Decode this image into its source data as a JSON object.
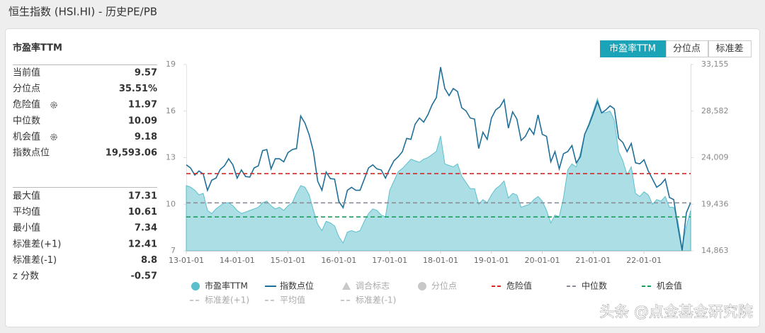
{
  "header": {
    "title": "恒生指数 (HSI.HI) - 历史PE/PB"
  },
  "panel": {
    "title": "市盈率TTM",
    "tabs": [
      "市盈率TTM",
      "分位点",
      "标准差"
    ],
    "active_tab": 0,
    "stats_top": [
      {
        "label": "当前值",
        "value": "9.57"
      },
      {
        "label": "分位点",
        "value": "35.51%"
      },
      {
        "label": "危险值",
        "value": "11.97",
        "settings_icon": true
      },
      {
        "label": "中位数",
        "value": "10.09"
      },
      {
        "label": "机会值",
        "value": "9.18",
        "settings_icon": true
      },
      {
        "label": "指数点位",
        "value": "19,593.06"
      }
    ],
    "stats_bottom": [
      {
        "label": "最大值",
        "value": "17.31"
      },
      {
        "label": "平均值",
        "value": "10.61"
      },
      {
        "label": "最小值",
        "value": "7.34"
      },
      {
        "label": "标准差(+1)",
        "value": "12.41"
      },
      {
        "label": "标准差(-1)",
        "value": "8.8"
      },
      {
        "label": "z 分数",
        "value": "-0.57"
      }
    ]
  },
  "watermark": "头条 @点金基金研究院",
  "chart_data": {
    "type": "line",
    "categories": [
      "13-01-01",
      null,
      null,
      null,
      null,
      null,
      null,
      null,
      null,
      null,
      null,
      null,
      "14-01-01",
      null,
      null,
      null,
      null,
      null,
      null,
      null,
      null,
      null,
      null,
      null,
      "15-01-01",
      null,
      null,
      null,
      null,
      null,
      null,
      null,
      null,
      null,
      null,
      null,
      "16-01-01",
      null,
      null,
      null,
      null,
      null,
      null,
      null,
      null,
      null,
      null,
      null,
      "17-01-01",
      null,
      null,
      null,
      null,
      null,
      null,
      null,
      null,
      null,
      null,
      null,
      "18-01-01",
      null,
      null,
      null,
      null,
      null,
      null,
      null,
      null,
      null,
      null,
      null,
      "19-01-01",
      null,
      null,
      null,
      null,
      null,
      null,
      null,
      null,
      null,
      null,
      null,
      "20-01-01",
      null,
      null,
      null,
      null,
      null,
      null,
      null,
      null,
      null,
      null,
      null,
      "21-01-01",
      null,
      null,
      null,
      null,
      null,
      null,
      null,
      null,
      null,
      null,
      null,
      "22-01-01",
      null,
      null,
      null,
      null,
      null,
      null,
      null,
      null,
      null,
      null,
      null
    ],
    "series": [
      {
        "name": "市盈率TTM",
        "style": "area",
        "symbol": "circle",
        "color": "#5bbfcc",
        "fill": "#a3dbe2",
        "values": [
          11.2,
          11.1,
          10.9,
          10.6,
          10.7,
          9.6,
          9.4,
          9.7,
          9.9,
          10.1,
          10.1,
          9.9,
          9.6,
          9.4,
          9.5,
          9.6,
          9.7,
          9.8,
          10.1,
          10.2,
          9.9,
          9.7,
          9.8,
          9.6,
          9.9,
          10.1,
          10.7,
          11.2,
          11.1,
          10.6,
          9.6,
          8.7,
          8.3,
          8.9,
          8.8,
          8.6,
          7.9,
          7.5,
          8.2,
          8.3,
          8.2,
          8.3,
          8.9,
          9.4,
          9.7,
          9.6,
          9.3,
          9.2,
          10.9,
          11.5,
          12.1,
          12.3,
          12.6,
          12.9,
          12.8,
          12.7,
          12.9,
          13.0,
          13.2,
          13.4,
          14.4,
          12.6,
          12.5,
          12.4,
          12.6,
          11.8,
          11.4,
          11.0,
          11.0,
          10.0,
          10.3,
          10.1,
          10.6,
          11.0,
          11.2,
          11.5,
          10.4,
          10.7,
          10.6,
          9.8,
          9.9,
          10.0,
          10.3,
          10.5,
          10.2,
          9.6,
          8.8,
          9.3,
          9.2,
          10.4,
          12.2,
          12.6,
          12.4,
          13.3,
          14.5,
          15.2,
          16.0,
          16.8,
          15.9,
          15.9,
          16.0,
          15.4,
          13.4,
          12.8,
          11.9,
          12.4,
          10.7,
          10.5,
          10.8,
          10.6,
          10.0,
          10.3,
          10.2,
          10.5,
          9.8,
          9.8,
          8.9,
          7.2,
          8.6,
          9.6
        ]
      },
      {
        "name": "指数点位",
        "style": "line",
        "symbol": "line",
        "color": "#1f6f98",
        "axis": "y2",
        "values": [
          23300,
          23000,
          22300,
          22700,
          22400,
          20800,
          21800,
          22000,
          22850,
          23200,
          23900,
          23300,
          22000,
          22800,
          22150,
          22100,
          23000,
          23200,
          24700,
          24800,
          22900,
          23900,
          23900,
          23600,
          24500,
          24800,
          24900,
          28100,
          27400,
          26250,
          24600,
          21700,
          20800,
          22600,
          21950,
          21900,
          19700,
          19100,
          20800,
          21100,
          20800,
          20800,
          21900,
          23000,
          23300,
          22900,
          22800,
          22000,
          22900,
          23700,
          24100,
          24600,
          25900,
          25800,
          27300,
          27900,
          27500,
          28200,
          29200,
          29900,
          32900,
          30800,
          30100,
          30800,
          30500,
          28900,
          28600,
          27900,
          27800,
          24900,
          26500,
          25800,
          27900,
          28700,
          29000,
          29700,
          26900,
          28500,
          27800,
          25700,
          26100,
          26900,
          26300,
          28200,
          26300,
          26100,
          23600,
          24600,
          22900,
          24400,
          24600,
          25200,
          23500,
          24100,
          26300,
          27200,
          28300,
          29500,
          28400,
          28700,
          29100,
          28800,
          25900,
          25500,
          24600,
          25400,
          23500,
          23400,
          23800,
          22700,
          21900,
          21100,
          21400,
          21900,
          20100,
          19900,
          17200,
          14900,
          18600,
          19600
        ]
      }
    ],
    "reference_lines": [
      {
        "name": "危险值",
        "color": "#d32a2a",
        "value": 11.97
      },
      {
        "name": "中位数",
        "color": "#8b8d99",
        "value": 10.09
      },
      {
        "name": "机会值",
        "color": "#1c9d5c",
        "value": 9.18
      }
    ],
    "inactive_series": [
      {
        "name": "调合标志",
        "symbol": "triangle"
      },
      {
        "name": "分位点",
        "symbol": "circle"
      },
      {
        "name": "标准差(+1)",
        "symbol": "dash"
      },
      {
        "name": "平均值",
        "symbol": "dash"
      },
      {
        "name": "标准差(-1)",
        "symbol": "dash"
      }
    ],
    "ylim": [
      7,
      19
    ],
    "yticks": [
      7,
      10,
      13,
      16,
      19
    ],
    "y2lim": [
      14863,
      33155
    ],
    "y2ticks": [
      {
        "value": 14863,
        "label": "14,863"
      },
      {
        "value": 19436,
        "label": "19,436"
      },
      {
        "value": 24009,
        "label": "24,009"
      },
      {
        "value": 28582,
        "label": "28,582"
      },
      {
        "value": 33155,
        "label": "33,155"
      }
    ]
  }
}
